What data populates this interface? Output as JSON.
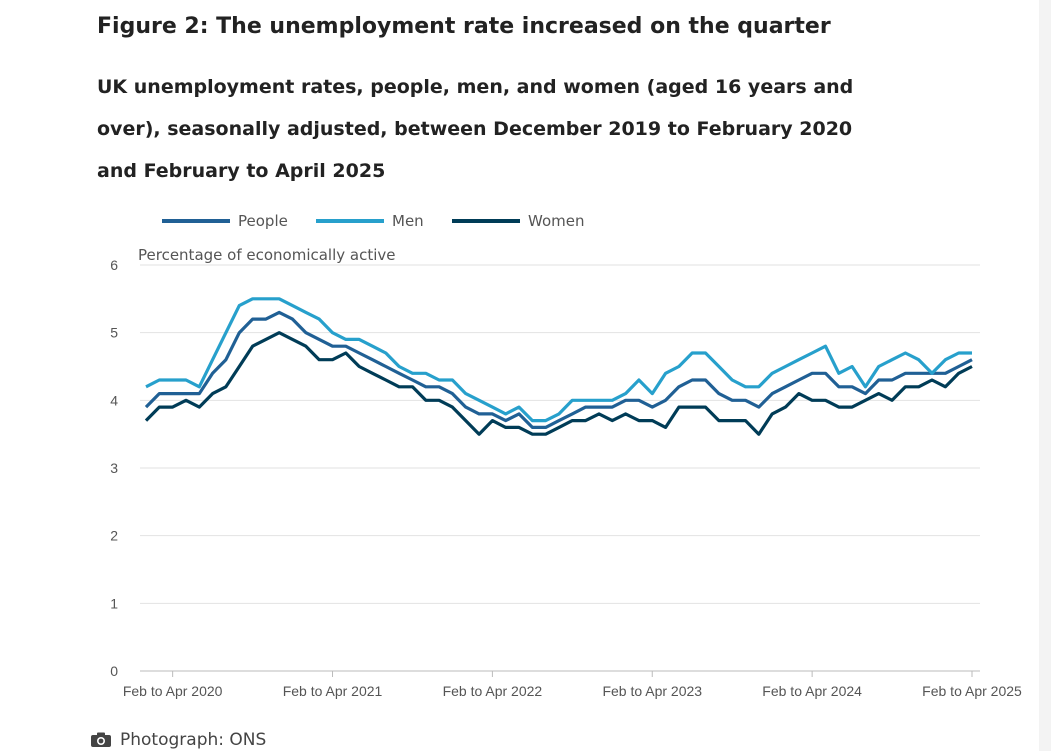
{
  "figure": {
    "title": "Figure 2: The unemployment rate increased on the quarter",
    "subtitle": "UK unemployment rates, people, men, and women (aged 16 years and over), seasonally adjusted, between December 2019 to February 2020 and February to April 2025"
  },
  "caption": {
    "icon": "camera-icon",
    "text": "Photograph: ONS"
  },
  "chart_data": {
    "type": "line",
    "title": "Figure 2: The unemployment rate increased on the quarter",
    "subtitle": "UK unemployment rates, people, men, and women (aged 16 years and over), seasonally adjusted, between December 2019 to February 2020 and February to April 2025",
    "ylabel": "Percentage of economically active",
    "ylim": [
      0,
      6
    ],
    "yticks": [
      0,
      1,
      2,
      3,
      4,
      5,
      6
    ],
    "grid": true,
    "legend_position": "top-left",
    "x_range": [
      "Dec 2019 to Feb 2020",
      "Feb to Apr 2025"
    ],
    "x_tick_labels": [
      "Feb to Apr 2020",
      "Feb to Apr 2021",
      "Feb to Apr 2022",
      "Feb to Apr 2023",
      "Feb to Apr 2024",
      "Feb to Apr 2025"
    ],
    "x_tick_index": [
      2,
      14,
      26,
      38,
      50,
      62
    ],
    "series": [
      {
        "name": "People",
        "color": "#206095",
        "values": [
          3.9,
          4.1,
          4.1,
          4.1,
          4.1,
          4.4,
          4.6,
          5.0,
          5.2,
          5.2,
          5.3,
          5.2,
          5.0,
          4.9,
          4.8,
          4.8,
          4.7,
          4.6,
          4.5,
          4.4,
          4.3,
          4.2,
          4.2,
          4.1,
          3.9,
          3.8,
          3.8,
          3.7,
          3.8,
          3.6,
          3.6,
          3.7,
          3.8,
          3.9,
          3.9,
          3.9,
          4.0,
          4.0,
          3.9,
          4.0,
          4.2,
          4.3,
          4.3,
          4.1,
          4.0,
          4.0,
          3.9,
          4.1,
          4.2,
          4.3,
          4.4,
          4.4,
          4.2,
          4.2,
          4.1,
          4.3,
          4.3,
          4.4,
          4.4,
          4.4,
          4.4,
          4.5,
          4.6
        ]
      },
      {
        "name": "Men",
        "color": "#27a0cc",
        "values": [
          4.2,
          4.3,
          4.3,
          4.3,
          4.2,
          4.6,
          5.0,
          5.4,
          5.5,
          5.5,
          5.5,
          5.4,
          5.3,
          5.2,
          5.0,
          4.9,
          4.9,
          4.8,
          4.7,
          4.5,
          4.4,
          4.4,
          4.3,
          4.3,
          4.1,
          4.0,
          3.9,
          3.8,
          3.9,
          3.7,
          3.7,
          3.8,
          4.0,
          4.0,
          4.0,
          4.0,
          4.1,
          4.3,
          4.1,
          4.4,
          4.5,
          4.7,
          4.7,
          4.5,
          4.3,
          4.2,
          4.2,
          4.4,
          4.5,
          4.6,
          4.7,
          4.8,
          4.4,
          4.5,
          4.2,
          4.5,
          4.6,
          4.7,
          4.6,
          4.4,
          4.6,
          4.7,
          4.7
        ]
      },
      {
        "name": "Women",
        "color": "#003c57",
        "values": [
          3.7,
          3.9,
          3.9,
          4.0,
          3.9,
          4.1,
          4.2,
          4.5,
          4.8,
          4.9,
          5.0,
          4.9,
          4.8,
          4.6,
          4.6,
          4.7,
          4.5,
          4.4,
          4.3,
          4.2,
          4.2,
          4.0,
          4.0,
          3.9,
          3.7,
          3.5,
          3.7,
          3.6,
          3.6,
          3.5,
          3.5,
          3.6,
          3.7,
          3.7,
          3.8,
          3.7,
          3.8,
          3.7,
          3.7,
          3.6,
          3.9,
          3.9,
          3.9,
          3.7,
          3.7,
          3.7,
          3.5,
          3.8,
          3.9,
          4.1,
          4.0,
          4.0,
          3.9,
          3.9,
          4.0,
          4.1,
          4.0,
          4.2,
          4.2,
          4.3,
          4.2,
          4.4,
          4.5
        ]
      }
    ]
  }
}
